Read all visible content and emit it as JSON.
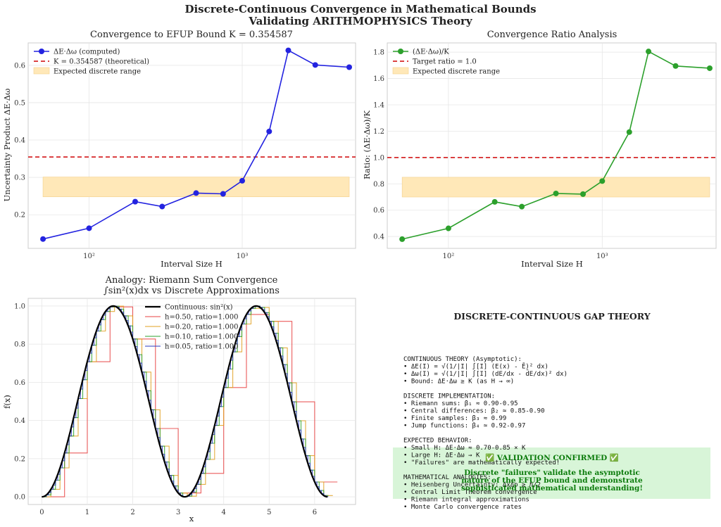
{
  "figure": {
    "suptitle_line1": "Discrete-Continuous Convergence in Mathematical Bounds",
    "suptitle_line2": "Validating ARITHMOPHYSICS Theory"
  },
  "chart_data": [
    {
      "type": "line",
      "title": "Convergence to EFUP Bound K = 0.354587",
      "xlabel": "Interval Size H",
      "ylabel": "Uncertainty Product ΔE·Δω",
      "xscale": "log",
      "xlim": [
        40,
        5500
      ],
      "ylim": [
        0.11,
        0.66
      ],
      "xticks": [
        100,
        1000
      ],
      "xtick_labels": [
        "10²",
        "10³"
      ],
      "yticks": [
        0.2,
        0.3,
        0.4,
        0.5,
        0.6
      ],
      "ytick_labels": [
        "0.2",
        "0.3",
        "0.4",
        "0.5",
        "0.6"
      ],
      "grid": true,
      "legend_position": "top-left",
      "x": [
        50,
        100,
        200,
        300,
        500,
        750,
        1000,
        1500,
        2000,
        3000,
        5000
      ],
      "series": [
        {
          "name": "ΔE·Δω (computed)",
          "color": "#2323e0",
          "values": [
            0.135,
            0.164,
            0.235,
            0.222,
            0.258,
            0.256,
            0.291,
            0.423,
            0.64,
            0.601,
            0.595
          ]
        }
      ],
      "hline": {
        "name": "K = 0.354587 (theoretical)",
        "value": 0.354587,
        "color": "#d62728"
      },
      "band": {
        "name": "Expected discrete range",
        "range": [
          0.248,
          0.301
        ],
        "x_range": [
          50,
          5000
        ],
        "color": "#ffe8b8"
      }
    },
    {
      "type": "line",
      "title": "Convergence Ratio Analysis",
      "xlabel": "Interval Size H",
      "ylabel": "Ratio: (ΔE·Δω)/K",
      "xscale": "log",
      "xlim": [
        40,
        5500
      ],
      "ylim": [
        0.31,
        1.87
      ],
      "xticks": [
        100,
        1000
      ],
      "xtick_labels": [
        "10²",
        "10³"
      ],
      "yticks": [
        0.4,
        0.6,
        0.8,
        1.0,
        1.2,
        1.4,
        1.6,
        1.8
      ],
      "ytick_labels": [
        "0.4",
        "0.6",
        "0.8",
        "1.0",
        "1.2",
        "1.4",
        "1.6",
        "1.8"
      ],
      "grid": true,
      "legend_position": "top-left",
      "x": [
        50,
        100,
        200,
        300,
        500,
        750,
        1000,
        1500,
        2000,
        3000,
        5000
      ],
      "series": [
        {
          "name": "(ΔE·Δω)/K",
          "color": "#2ca02c",
          "values": [
            0.38,
            0.462,
            0.663,
            0.627,
            0.727,
            0.722,
            0.821,
            1.193,
            1.805,
            1.695,
            1.678
          ]
        }
      ],
      "hline": {
        "name": "Target ratio = 1.0",
        "value": 1.0,
        "color": "#d62728"
      },
      "band": {
        "name": "Expected discrete range",
        "range": [
          0.7,
          0.85
        ],
        "x_range": [
          50,
          5000
        ],
        "color": "#ffe8b8"
      }
    },
    {
      "type": "line",
      "title": "Analogy: Riemann Sum Convergence",
      "subtitle": "∫sin²(x)dx vs Discrete Approximations",
      "xlabel": "x",
      "ylabel": "f(x)",
      "xlim": [
        -0.3,
        6.9
      ],
      "ylim": [
        -0.04,
        1.04
      ],
      "xticks": [
        0,
        1,
        2,
        3,
        4,
        5,
        6
      ],
      "xtick_labels": [
        "0",
        "1",
        "2",
        "3",
        "4",
        "5",
        "6"
      ],
      "yticks": [
        0.0,
        0.2,
        0.4,
        0.6,
        0.8,
        1.0
      ],
      "ytick_labels": [
        "0.0",
        "0.2",
        "0.4",
        "0.6",
        "0.8",
        "1.0"
      ],
      "grid": true,
      "legend_position": "top-center",
      "function": "sin²(x)",
      "x_range": [
        0,
        6.2832
      ],
      "continuous": {
        "name": "Continuous: sin²(x)",
        "color": "#000000"
      },
      "step_series": [
        {
          "name": "h=0.50, ratio=1.000",
          "h": 0.5,
          "color": "#e84040"
        },
        {
          "name": "h=0.20, ratio=1.000",
          "h": 0.2,
          "color": "#e0a020"
        },
        {
          "name": "h=0.10, ratio=1.000",
          "h": 0.1,
          "color": "#2ca02c"
        },
        {
          "name": "h=0.05, ratio=1.000",
          "h": 0.05,
          "color": "#2a3ac0"
        }
      ]
    }
  ],
  "gap_panel": {
    "title": "DISCRETE-CONTINUOUS GAP THEORY",
    "lines": [
      "CONTINUOUS THEORY (Asymptotic):",
      "• ΔE(I) = √(1/|I| ∫[I] (E(x) - Ē)² dx)",
      "• Δω(I) = √(1/|I| ∫[I] (dE/dx - d̄E/dx)² dx)",
      "• Bound: ΔE·Δω ≥ K (as H → ∞)",
      "",
      "DISCRETE IMPLEMENTATION:",
      "• Riemann sums: β₁ ≈ 0.90-0.95",
      "• Central differences: β₂ ≈ 0.85-0.90",
      "• Finite samples: β₃ ≈ 0.99",
      "• Jump functions: β₄ ≈ 0.92-0.97",
      "",
      "EXPECTED BEHAVIOR:",
      "• Small H: ΔE·Δω ≈ 0.70-0.85 × K",
      "• Large H: ΔE·Δω → K",
      "• \"Failures\" are mathematically expected!",
      "",
      "MATHEMATICAL ANALOGIES:",
      "• Heisenberg Uncertainty: ΔxΔp ≥ ℏ/2",
      "• Central Limit Theorem convergence",
      "• Riemann integral approximations",
      "• Monte Carlo convergence rates"
    ],
    "validation": {
      "line1": "✅ VALIDATION CONFIRMED ✅",
      "line2": "Discrete \"failures\" validate the asymptotic",
      "line3": "nature of the EFUP bound and demonstrate",
      "line4": "sophisticated mathematical understanding!",
      "bg_color": "#d8f5d8",
      "text_color": "#0a7a0a"
    }
  }
}
